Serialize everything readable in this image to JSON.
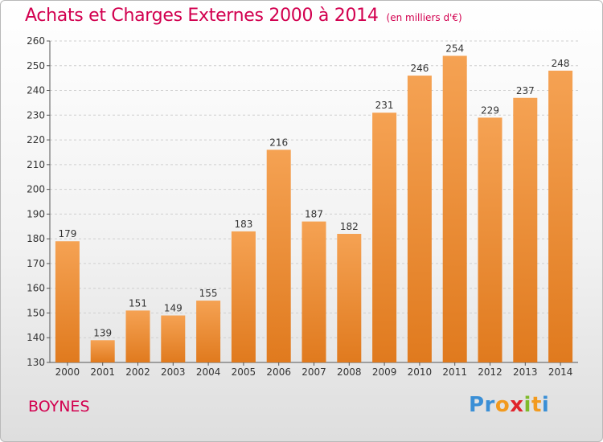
{
  "header": {
    "title": "Achats et Charges Externes 2000 à 2014",
    "subtitle": "(en milliers d'€)"
  },
  "footer": {
    "commune": "BOYNES",
    "logo_text": "Proxiti"
  },
  "colors": {
    "title": "#d2004f",
    "bar_top": "#f5a253",
    "bar_bottom": "#e07a1e"
  },
  "chart_data": {
    "type": "bar",
    "categories": [
      "2000",
      "2001",
      "2002",
      "2003",
      "2004",
      "2005",
      "2006",
      "2007",
      "2008",
      "2009",
      "2010",
      "2011",
      "2012",
      "2013",
      "2014"
    ],
    "values": [
      179,
      139,
      151,
      149,
      155,
      183,
      216,
      187,
      182,
      231,
      246,
      254,
      229,
      237,
      248
    ],
    "title": "Achats et Charges Externes 2000 à 2014",
    "xlabel": "",
    "ylabel": "",
    "ylim": [
      130,
      260
    ],
    "yticks": [
      130,
      140,
      150,
      160,
      170,
      180,
      190,
      200,
      210,
      220,
      230,
      240,
      250,
      260
    ],
    "grid": true,
    "data_labels": true
  }
}
